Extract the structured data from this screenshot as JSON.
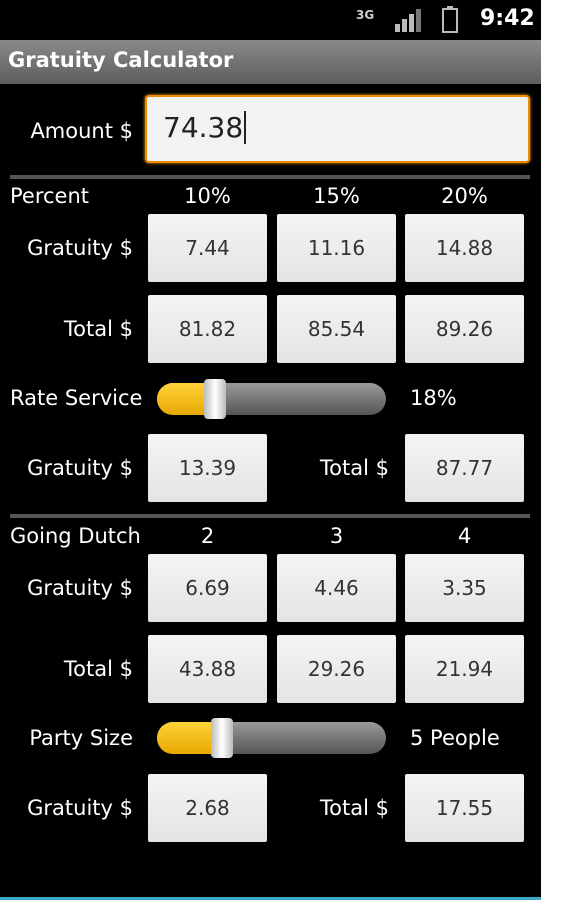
{
  "status_bar": {
    "network": "3G",
    "time": "9:42"
  },
  "title": "Gratuity Calculator",
  "amount": {
    "label": "Amount $",
    "value": "74.38"
  },
  "percent": {
    "header": "Percent",
    "columns": [
      "10%",
      "15%",
      "20%"
    ],
    "rows": [
      {
        "label": "Gratuity $",
        "cells": [
          "7.44",
          "11.16",
          "14.88"
        ]
      },
      {
        "label": "Total $",
        "cells": [
          "81.82",
          "85.54",
          "89.26"
        ]
      }
    ]
  },
  "rate_service": {
    "label": "Rate Service",
    "value": "18%",
    "gratuity_label": "Gratuity $",
    "gratuity": "13.39",
    "total_label": "Total $",
    "total": "87.77"
  },
  "going_dutch": {
    "header": "Going Dutch",
    "columns": [
      "2",
      "3",
      "4"
    ],
    "rows": [
      {
        "label": "Gratuity $",
        "cells": [
          "6.69",
          "4.46",
          "3.35"
        ]
      },
      {
        "label": "Total $",
        "cells": [
          "43.88",
          "29.26",
          "21.94"
        ]
      }
    ]
  },
  "party_size": {
    "label": "Party Size",
    "value": "5 People",
    "gratuity_label": "Gratuity $",
    "gratuity": "2.68",
    "total_label": "Total $",
    "total": "17.55"
  }
}
